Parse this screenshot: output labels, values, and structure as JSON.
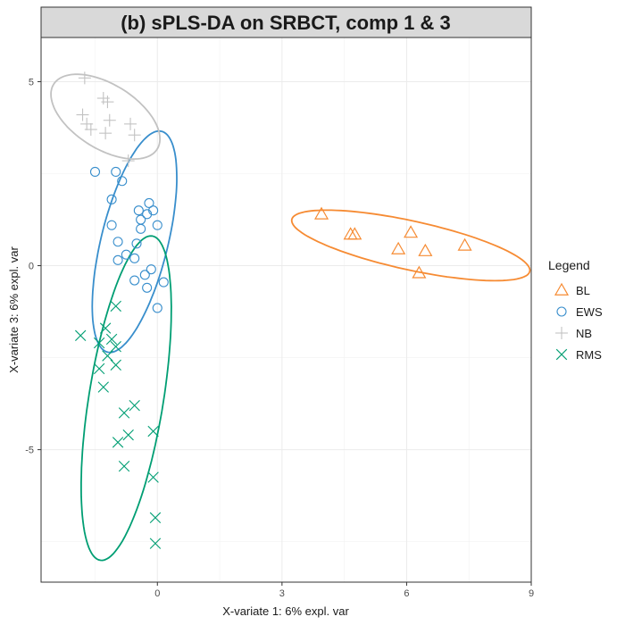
{
  "chart_data": {
    "type": "scatter",
    "title": "(b) sPLS-DA on SRBCT, comp 1 & 3",
    "xlabel": "X-variate 1: 6% expl. var",
    "ylabel": "X-variate 3: 6% expl. var",
    "xlim": [
      -2.8,
      9.0
    ],
    "ylim": [
      -8.6,
      6.2
    ],
    "x_ticks": [
      0,
      3,
      6,
      9
    ],
    "y_ticks": [
      -5,
      0,
      5
    ],
    "grid": true,
    "legend": {
      "title": "Legend",
      "position": "right"
    },
    "series": [
      {
        "name": "BL",
        "color": "#F68B33",
        "marker": "triangle",
        "points": [
          [
            3.95,
            1.4
          ],
          [
            4.65,
            0.85
          ],
          [
            4.75,
            0.85
          ],
          [
            5.8,
            0.45
          ],
          [
            6.1,
            0.9
          ],
          [
            6.45,
            0.4
          ],
          [
            7.4,
            0.55
          ],
          [
            6.3,
            -0.2
          ]
        ],
        "ellipse": {
          "cx": 6.1,
          "cy": 0.55,
          "rx": 2.95,
          "ry": 0.66,
          "angle_deg": -14
        }
      },
      {
        "name": "EWS",
        "color": "#388ECC",
        "marker": "circle",
        "points": [
          [
            -1.5,
            2.55
          ],
          [
            -1.0,
            2.55
          ],
          [
            -0.85,
            2.3
          ],
          [
            -1.1,
            1.8
          ],
          [
            -1.1,
            1.1
          ],
          [
            -0.95,
            0.65
          ],
          [
            -0.95,
            0.15
          ],
          [
            -0.75,
            0.3
          ],
          [
            -0.55,
            0.2
          ],
          [
            -0.5,
            0.6
          ],
          [
            -0.4,
            1.0
          ],
          [
            -0.45,
            1.5
          ],
          [
            -0.2,
            1.7
          ],
          [
            -0.25,
            1.4
          ],
          [
            -0.1,
            1.5
          ],
          [
            0.0,
            1.1
          ],
          [
            -0.4,
            1.25
          ],
          [
            -0.3,
            -0.25
          ],
          [
            -0.55,
            -0.4
          ],
          [
            -0.15,
            -0.1
          ],
          [
            -0.25,
            -0.6
          ],
          [
            0.15,
            -0.45
          ],
          [
            0.0,
            -1.15
          ]
        ],
        "ellipse": {
          "cx": -0.55,
          "cy": 0.65,
          "rx": 3.07,
          "ry": 0.81,
          "angle_deg": 78
        }
      },
      {
        "name": "NB",
        "color": "#C2C2C2",
        "marker": "plus",
        "points": [
          [
            -1.75,
            5.1
          ],
          [
            -1.3,
            4.55
          ],
          [
            -1.2,
            4.45
          ],
          [
            -1.8,
            4.1
          ],
          [
            -1.7,
            3.85
          ],
          [
            -1.6,
            3.7
          ],
          [
            -1.15,
            3.95
          ],
          [
            -0.65,
            3.85
          ],
          [
            -0.55,
            3.55
          ],
          [
            -0.7,
            2.85
          ],
          [
            -1.25,
            3.6
          ]
        ],
        "ellipse": {
          "cx": -1.25,
          "cy": 4.05,
          "rx": 1.53,
          "ry": 0.84,
          "angle_deg": -38
        }
      },
      {
        "name": "RMS",
        "color": "#009E73",
        "marker": "cross",
        "points": [
          [
            -1.85,
            -1.9
          ],
          [
            -1.0,
            -1.1
          ],
          [
            -1.25,
            -1.7
          ],
          [
            -1.4,
            -2.1
          ],
          [
            -1.1,
            -2.0
          ],
          [
            -1.0,
            -2.2
          ],
          [
            -1.2,
            -2.45
          ],
          [
            -1.0,
            -2.7
          ],
          [
            -1.4,
            -2.8
          ],
          [
            -1.3,
            -3.3
          ],
          [
            -0.55,
            -3.8
          ],
          [
            -0.8,
            -4.0
          ],
          [
            -0.1,
            -4.5
          ],
          [
            -0.7,
            -4.6
          ],
          [
            -0.95,
            -4.8
          ],
          [
            -0.8,
            -5.45
          ],
          [
            -0.1,
            -5.75
          ],
          [
            -0.05,
            -6.85
          ],
          [
            -0.05,
            -7.55
          ]
        ],
        "ellipse": {
          "cx": -0.75,
          "cy": -3.6,
          "rx": 4.45,
          "ry": 0.9,
          "angle_deg": 82
        }
      }
    ]
  }
}
